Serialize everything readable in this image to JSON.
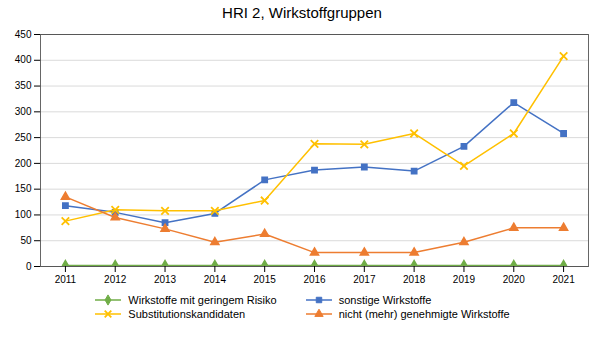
{
  "chart_data": {
    "type": "line",
    "title": "HRI 2, Wirkstoffgruppen",
    "x": [
      2011,
      2012,
      2013,
      2014,
      2015,
      2016,
      2017,
      2018,
      2019,
      2020,
      2021
    ],
    "series": [
      {
        "name": "Wirkstoffe mit geringem Risiko",
        "color": "#70AD47",
        "marker": "diamond",
        "values": [
          2,
          2,
          2,
          2,
          2,
          2,
          2,
          2,
          2,
          2,
          2
        ]
      },
      {
        "name": "sonstige Wirkstoffe",
        "color": "#4472C4",
        "marker": "square",
        "values": [
          118,
          105,
          85,
          103,
          168,
          187,
          193,
          185,
          233,
          318,
          258
        ]
      },
      {
        "name": "Substitutionskandidaten",
        "color": "#FFC000",
        "marker": "x",
        "values": [
          88,
          110,
          108,
          108,
          128,
          238,
          237,
          258,
          195,
          258,
          408
        ]
      },
      {
        "name": "nicht (mehr) genehmigte Wirkstoffe",
        "color": "#ED7D31",
        "marker": "triangle",
        "values": [
          135,
          95,
          73,
          47,
          63,
          27,
          27,
          27,
          47,
          75,
          75
        ]
      }
    ],
    "xlim": [
      2010.5,
      2021.5
    ],
    "xticks": [
      2011,
      2012,
      2013,
      2014,
      2015,
      2016,
      2017,
      2018,
      2019,
      2020,
      2021
    ],
    "ylim": [
      0,
      450
    ],
    "yticks": [
      0,
      50,
      100,
      150,
      200,
      250,
      300,
      350,
      400,
      450
    ],
    "grid": true,
    "legend": "bottom"
  }
}
